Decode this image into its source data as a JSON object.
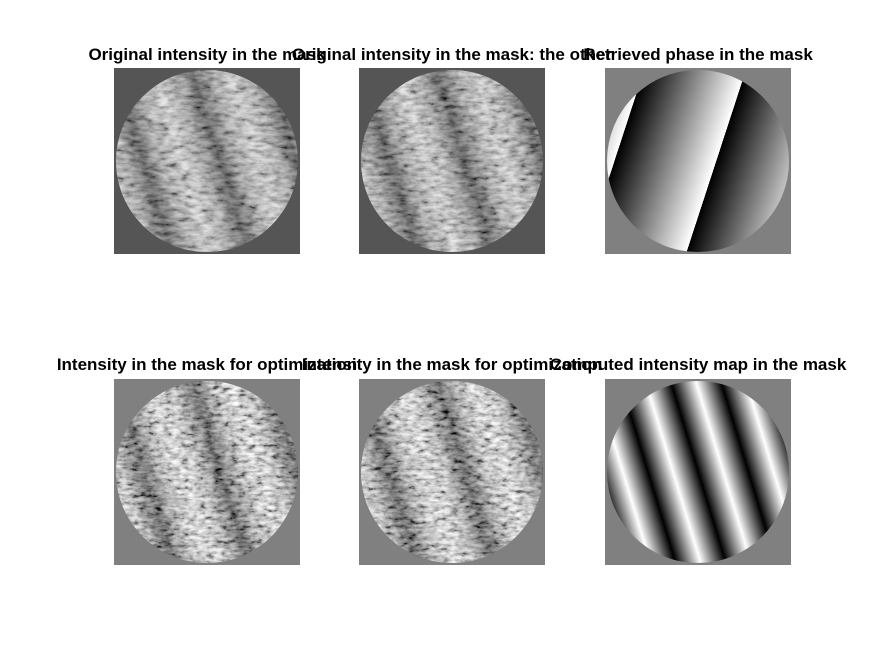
{
  "figure": {
    "panels": [
      {
        "title": "Original intensity in the mask",
        "kind": "noisy-fringes",
        "background": "#555555"
      },
      {
        "title": "Original intensity in the mask: the other",
        "kind": "noisy-fringes",
        "background": "#555555"
      },
      {
        "title": "Retrieved phase in the mask",
        "kind": "phase-ramp",
        "background": "#808080"
      },
      {
        "title": "Intensity in the mask for optimization",
        "kind": "noisy-fringes-high-contrast",
        "background": "#808080"
      },
      {
        "title": "Intensity in the mask for optimization",
        "kind": "noisy-fringes-high-contrast",
        "background": "#808080"
      },
      {
        "title": "Computed intensity map in the mask",
        "kind": "smooth-fringes",
        "background": "#808080"
      }
    ]
  }
}
